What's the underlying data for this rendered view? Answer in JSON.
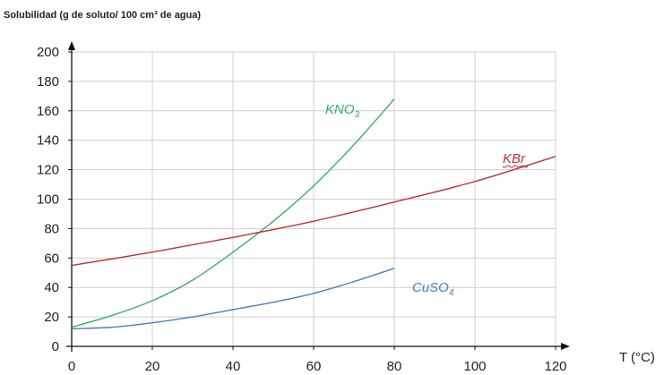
{
  "chart_data": {
    "type": "line",
    "title": "Solubilidad (g de soluto/ 100 cm³ de agua)",
    "xlabel": "T (°C)",
    "ylabel": "",
    "xlim": [
      0,
      120
    ],
    "ylim": [
      0,
      200
    ],
    "x_ticks": [
      "0",
      "20",
      "40",
      "60",
      "80",
      "100",
      "120"
    ],
    "y_ticks": [
      "0",
      "20",
      "40",
      "60",
      "80",
      "100",
      "120",
      "140",
      "160",
      "180",
      "200"
    ],
    "grid": true,
    "series": [
      {
        "name_main": "KNO",
        "name_sub": "3",
        "color": "#3aaf6a",
        "x": [
          0,
          10,
          20,
          30,
          40,
          50,
          60,
          70,
          80
        ],
        "values": [
          13,
          21,
          31,
          45,
          64,
          85,
          109,
          137,
          168
        ]
      },
      {
        "name_main": "KBr",
        "name_sub": "",
        "color": "#c0303a",
        "x": [
          0,
          20,
          40,
          60,
          80,
          100,
          120
        ],
        "values": [
          55,
          64,
          74,
          85,
          98,
          112,
          129
        ]
      },
      {
        "name_main": "CuSO",
        "name_sub": "4",
        "color": "#4a7fc0",
        "x": [
          0,
          10,
          20,
          30,
          40,
          50,
          60,
          70,
          80
        ],
        "values": [
          12,
          13,
          16,
          20,
          25,
          30,
          36,
          44,
          53
        ]
      }
    ]
  }
}
